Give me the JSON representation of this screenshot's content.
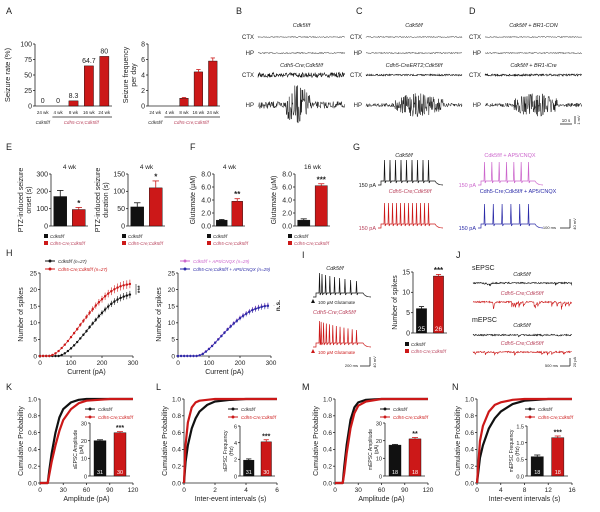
{
  "colors": {
    "control": "#111111",
    "cre": "#cc1818",
    "genotype_text": "#b8405a",
    "ap5": "#cc66cc",
    "cre_ap5": "#2b2ba8",
    "axis": "#222222"
  },
  "panel_labels": [
    "A",
    "B",
    "C",
    "D",
    "E",
    "F",
    "G",
    "H",
    "I",
    "J",
    "K",
    "L",
    "M",
    "N"
  ],
  "genotypes": {
    "control": "Cdk5f/f",
    "cre": "Cdh5-Cre;Cdk5f/f",
    "creert2": "Cdh5-CreERT2;Cdk5f/f",
    "br1_con": "Cdk5f/f + BR1-CON",
    "br1_icre": "Cdk5f/f + BR1-iCre",
    "ap5": "Cdk5f/f + AP5/CNQX",
    "cre_ap5": "Cdh5-Cre;Cdk5f/f + AP5/CNQX"
  },
  "eeg": {
    "ctx": "CTX",
    "hp": "HP",
    "scale_time": "10 s",
    "scale_amp": "1 mV"
  },
  "G": {
    "current": "150 pA",
    "scale_time": "100 ms",
    "scale_amp": "40 mV"
  },
  "I": {
    "stim": "100 µM Glutamate",
    "scale_time": "200 ms",
    "scale_amp": "40 mV"
  },
  "J": {
    "sepsc": "sEPSC",
    "mepsc": "mEPSC",
    "scale_time": "500 ms",
    "scale_amp": "20 pA"
  },
  "chart_data": [
    {
      "panel": "A",
      "type": "bar",
      "categories": [
        "24 wk",
        "4 wk",
        "8 wk",
        "16 wk",
        "24 wk"
      ],
      "values": [
        0,
        0,
        8.3,
        64.7,
        80
      ],
      "data_labels": [
        "0",
        "0",
        "8.3",
        "64.7",
        "80"
      ],
      "bar_colors": [
        "control",
        "cre",
        "cre",
        "cre",
        "cre"
      ],
      "ylabel": [
        "Seizure rate (%)"
      ],
      "ylim": [
        0,
        100
      ],
      "yticks": [
        "0",
        "25",
        "50",
        "75",
        "100"
      ],
      "groups": [
        "Cdk5f/f",
        "Cdh5-Cre;Cdk5f/f"
      ]
    },
    {
      "panel": "A",
      "type": "bar",
      "categories": [
        "24 wk",
        "4 wk",
        "8 wk",
        "16 wk",
        "24 wk"
      ],
      "values": [
        0,
        0,
        1,
        4.4,
        5.8
      ],
      "errors": [
        0,
        0,
        0.1,
        0.3,
        0.4
      ],
      "bar_colors": [
        "control",
        "cre",
        "cre",
        "cre",
        "cre"
      ],
      "ylabel": [
        "Seizure frequency",
        "per day"
      ],
      "ylim": [
        0,
        8
      ],
      "yticks": [
        "0",
        "2",
        "4",
        "6",
        "8"
      ],
      "groups": [
        "Cdk5f/f",
        "Cdh5-Cre;Cdk5f/f"
      ]
    },
    {
      "panel": "E",
      "type": "bar",
      "title": "4 wk",
      "values": [
        170,
        95
      ],
      "errors": [
        35,
        12
      ],
      "bar_colors": [
        "control",
        "cre"
      ],
      "ylabel": [
        "PTZ-induced seizure",
        "onset (s)"
      ],
      "ylim": [
        0,
        300
      ],
      "yticks": [
        "0",
        "100",
        "200",
        "300"
      ],
      "significance": "*",
      "legend": [
        "Cdk5f/f",
        "Cdh5-Cre;Cdk5f/f"
      ]
    },
    {
      "panel": "E",
      "type": "bar",
      "title": "4 wk",
      "values": [
        55,
        110
      ],
      "errors": [
        12,
        20
      ],
      "bar_colors": [
        "control",
        "cre"
      ],
      "ylabel": [
        "PTZ-induced seizure",
        "duration (s)"
      ],
      "ylim": [
        0,
        150
      ],
      "yticks": [
        "0",
        "50",
        "100",
        "150"
      ],
      "significance": "*",
      "legend": [
        "Cdk5f/f",
        "Cdh5-Cre;Cdk5f/f"
      ]
    },
    {
      "panel": "F",
      "type": "bar",
      "title": "4 wk",
      "values": [
        0.9,
        3.8
      ],
      "errors": [
        0.1,
        0.4
      ],
      "bar_colors": [
        "control",
        "cre"
      ],
      "ylabel": [
        "Glutamate (µM)"
      ],
      "ylim": [
        0,
        8
      ],
      "yticks": [
        "0.0",
        "2.0",
        "4.0",
        "6.0",
        "8.0"
      ],
      "significance": "**",
      "legend": [
        "Cdk5f/f",
        "Cdh5-Cre;Cdk5f/f"
      ]
    },
    {
      "panel": "F",
      "type": "bar",
      "title": "16 wk",
      "values": [
        0.9,
        6.2
      ],
      "errors": [
        0.2,
        0.3
      ],
      "bar_colors": [
        "control",
        "cre"
      ],
      "ylabel": [
        "Glutamate (µM)"
      ],
      "ylim": [
        0,
        8
      ],
      "yticks": [
        "0.0",
        "2.0",
        "4.0",
        "6.0",
        "8.0"
      ],
      "significance": "***",
      "legend": [
        "Cdk5f/f",
        "Cdh5-Cre;Cdk5f/f"
      ]
    },
    {
      "panel": "H",
      "type": "line",
      "xlabel": "Current (pA)",
      "ylabel": [
        "Number of spikes"
      ],
      "xlim": [
        0,
        300
      ],
      "ylim": [
        0,
        25
      ],
      "xticks": [
        "0",
        "100",
        "200",
        "300"
      ],
      "yticks": [
        "0",
        "5",
        "10",
        "15",
        "20",
        "25"
      ],
      "significance": "***",
      "x": [
        0,
        10,
        20,
        30,
        40,
        50,
        60,
        70,
        80,
        90,
        100,
        110,
        120,
        130,
        140,
        150,
        160,
        170,
        180,
        190,
        200,
        210,
        220,
        230,
        240,
        250,
        260,
        270,
        280,
        290
      ],
      "series": [
        {
          "name": "Cdk5f/f (n=27)",
          "color": "control",
          "values": [
            0,
            0,
            0,
            0,
            0,
            0,
            0,
            0.3,
            0.8,
            1.5,
            2.3,
            3.2,
            4.2,
            5.3,
            6.4,
            7.5,
            8.7,
            9.8,
            10.9,
            12,
            13,
            14,
            14.9,
            15.7,
            16.4,
            17,
            17.5,
            17.9,
            18.2,
            18.5
          ]
        },
        {
          "name": "Cdh5-Cre;Cdk5f/f (n=27)",
          "color": "cre",
          "values": [
            0,
            0,
            0,
            0,
            0.3,
            0.8,
            1.5,
            2.4,
            3.4,
            4.5,
            5.7,
            6.9,
            8.1,
            9.4,
            10.6,
            11.8,
            13,
            14.1,
            15.2,
            16.2,
            17.1,
            18,
            18.8,
            19.5,
            20.1,
            20.6,
            21,
            21.3,
            21.5,
            21.7
          ]
        }
      ]
    },
    {
      "panel": "H",
      "type": "line",
      "xlabel": "Current (pA)",
      "ylabel": [
        "Number of spikes"
      ],
      "xlim": [
        0,
        300
      ],
      "ylim": [
        0,
        25
      ],
      "xticks": [
        "0",
        "100",
        "200",
        "300"
      ],
      "yticks": [
        "0",
        "5",
        "10",
        "15",
        "20",
        "25"
      ],
      "significance": "n.s.",
      "x": [
        0,
        10,
        20,
        30,
        40,
        50,
        60,
        70,
        80,
        90,
        100,
        110,
        120,
        130,
        140,
        150,
        160,
        170,
        180,
        190,
        200,
        210,
        220,
        230,
        240,
        250,
        260,
        270,
        280,
        290
      ],
      "series": [
        {
          "name": "Cdk5f/f + AP5/CNQX (n=29)",
          "color": "ap5",
          "values": [
            0,
            0,
            0,
            0,
            0,
            0,
            0,
            0.2,
            0.7,
            1.4,
            2.2,
            3.1,
            4.1,
            5.1,
            6.1,
            7.1,
            8.1,
            9,
            9.9,
            10.7,
            11.5,
            12.2,
            12.8,
            13.4,
            13.9,
            14.3,
            14.6,
            14.9,
            15.1,
            15.2
          ]
        },
        {
          "name": "Cdh5-Cre;Cdk5f/f + AP5/CNQX (n=29)",
          "color": "cre_ap5",
          "values": [
            0,
            0,
            0,
            0,
            0,
            0,
            0,
            0.2,
            0.6,
            1.3,
            2.1,
            3,
            4,
            5,
            6,
            7,
            8,
            8.9,
            9.8,
            10.6,
            11.4,
            12.1,
            12.7,
            13.3,
            13.8,
            14.2,
            14.5,
            14.8,
            15,
            15.1
          ]
        }
      ]
    },
    {
      "panel": "I",
      "type": "bar",
      "values": [
        6,
        14
      ],
      "errors": [
        0.5,
        0.4
      ],
      "n": [
        "25",
        "26"
      ],
      "bar_colors": [
        "control",
        "cre"
      ],
      "ylabel": [
        "Number of spikes"
      ],
      "ylim": [
        0,
        15
      ],
      "yticks": [
        "0",
        "5",
        "10",
        "15"
      ],
      "significance": "***",
      "legend": [
        "Cdk5f/f",
        "Cdh5-Cre;Cdk5f/f"
      ]
    },
    {
      "panel": "K",
      "type": "line",
      "subtype": "cumulative",
      "xlabel": "Amplitude (pA)",
      "ylabel": [
        "Cumulative Probability"
      ],
      "xlim": [
        0,
        120
      ],
      "ylim": [
        0,
        1
      ],
      "xticks": [
        "0",
        "30",
        "60",
        "90",
        "120"
      ],
      "yticks": [
        "0.0",
        "0.2",
        "0.4",
        "0.6",
        "0.8",
        "1.0"
      ],
      "x": [
        0,
        10,
        12,
        15,
        20,
        25,
        30,
        40,
        50,
        60,
        90,
        120
      ],
      "series": [
        {
          "name": "Cdk5f/f",
          "color": "control",
          "values": [
            0,
            0,
            0.15,
            0.35,
            0.6,
            0.78,
            0.88,
            0.96,
            0.99,
            1,
            1,
            1
          ]
        },
        {
          "name": "Cdh5-Cre;Cdk5f/f",
          "color": "cre",
          "values": [
            0,
            0,
            0.1,
            0.25,
            0.45,
            0.62,
            0.75,
            0.88,
            0.95,
            0.98,
            1,
            1
          ]
        }
      ],
      "inset": {
        "type": "bar",
        "values": [
          20,
          24.5
        ],
        "errors": [
          0.5,
          0.6
        ],
        "n": [
          "31",
          "30"
        ],
        "bar_colors": [
          "control",
          "cre"
        ],
        "ylabel": [
          "sEPSC Amplitude",
          "(pA)"
        ],
        "ylim": [
          0,
          30
        ],
        "yticks": [
          "0",
          "10",
          "20",
          "30"
        ],
        "significance": "***"
      }
    },
    {
      "panel": "L",
      "type": "line",
      "subtype": "cumulative",
      "xlabel": "Inter-event  intervals (s)",
      "ylabel": [
        "Cumulative Probability"
      ],
      "xlim": [
        0,
        6
      ],
      "ylim": [
        0,
        1
      ],
      "xticks": [
        "0",
        "2",
        "4",
        "6"
      ],
      "yticks": [
        "0.0",
        "0.2",
        "0.4",
        "0.6",
        "0.8",
        "1.0"
      ],
      "x": [
        0,
        0.1,
        0.25,
        0.5,
        0.75,
        1,
        1.5,
        2,
        3,
        4,
        6
      ],
      "series": [
        {
          "name": "Cdk5f/f",
          "color": "control",
          "values": [
            0,
            0.25,
            0.45,
            0.65,
            0.77,
            0.85,
            0.93,
            0.97,
            0.99,
            1,
            1
          ]
        },
        {
          "name": "Cdh5-Cre;Cdk5f/f",
          "color": "cre",
          "values": [
            0,
            0.45,
            0.72,
            0.9,
            0.96,
            0.98,
            0.99,
            1,
            1,
            1,
            1
          ]
        }
      ],
      "inset": {
        "type": "bar",
        "values": [
          1.9,
          4.1
        ],
        "errors": [
          0.15,
          0.25
        ],
        "n": [
          "31",
          "30"
        ],
        "bar_colors": [
          "control",
          "cre"
        ],
        "ylabel": [
          "sEPSC Frequency",
          "(Hz)"
        ],
        "ylim": [
          0,
          6
        ],
        "yticks": [
          "0",
          "2",
          "4",
          "6"
        ],
        "significance": "***"
      }
    },
    {
      "panel": "M",
      "type": "line",
      "subtype": "cumulative",
      "xlabel": "Amplitude (pA)",
      "ylabel": [
        "Cumulative Probability"
      ],
      "xlim": [
        0,
        120
      ],
      "ylim": [
        0,
        1
      ],
      "xticks": [
        "0",
        "30",
        "60",
        "90",
        "120"
      ],
      "yticks": [
        "0.0",
        "0.2",
        "0.4",
        "0.6",
        "0.8",
        "1.0"
      ],
      "x": [
        0,
        10,
        12,
        15,
        20,
        25,
        30,
        40,
        60,
        120
      ],
      "series": [
        {
          "name": "Cdk5f/f",
          "color": "control",
          "values": [
            0,
            0,
            0.2,
            0.45,
            0.75,
            0.9,
            0.96,
            0.99,
            1,
            1
          ]
        },
        {
          "name": "Cdh5-Cre;Cdk5f/f",
          "color": "cre",
          "values": [
            0,
            0,
            0.12,
            0.35,
            0.65,
            0.83,
            0.92,
            0.97,
            1,
            1
          ]
        }
      ],
      "inset": {
        "type": "bar",
        "values": [
          17.5,
          21
        ],
        "errors": [
          0.4,
          0.8
        ],
        "n": [
          "18",
          "18"
        ],
        "bar_colors": [
          "control",
          "cre"
        ],
        "ylabel": [
          "mEPSC Amplitude",
          "(pA)"
        ],
        "ylim": [
          0,
          30
        ],
        "yticks": [
          "0",
          "10",
          "20",
          "30"
        ],
        "significance": "**"
      }
    },
    {
      "panel": "N",
      "type": "line",
      "subtype": "cumulative",
      "xlabel": "Inter-event  intervals (s)",
      "ylabel": [
        "Cumulative Probability"
      ],
      "xlim": [
        0,
        16
      ],
      "ylim": [
        0,
        1
      ],
      "xticks": [
        "0",
        "4",
        "8",
        "12",
        "16"
      ],
      "yticks": [
        "0.0",
        "0.2",
        "0.4",
        "0.6",
        "0.8",
        "1.0"
      ],
      "x": [
        0,
        0.5,
        1,
        2,
        3,
        4,
        6,
        8,
        12,
        16
      ],
      "series": [
        {
          "name": "Cdk5f/f",
          "color": "control",
          "values": [
            0,
            0.3,
            0.45,
            0.65,
            0.77,
            0.85,
            0.94,
            0.98,
            1,
            1
          ]
        },
        {
          "name": "Cdh5-Cre;Cdk5f/f",
          "color": "cre",
          "values": [
            0,
            0.5,
            0.68,
            0.85,
            0.93,
            0.96,
            0.99,
            1,
            1,
            1
          ]
        }
      ],
      "inset": {
        "type": "bar",
        "values": [
          0.58,
          1.15
        ],
        "errors": [
          0.05,
          0.05
        ],
        "n": [
          "18",
          "18"
        ],
        "bar_colors": [
          "control",
          "cre"
        ],
        "ylabel": [
          "mEPSC Frequency",
          "(Hz)"
        ],
        "ylim": [
          0,
          1.5
        ],
        "yticks": [
          "0.0",
          "0.5",
          "1.0",
          "1.5"
        ],
        "significance": "***"
      }
    }
  ]
}
